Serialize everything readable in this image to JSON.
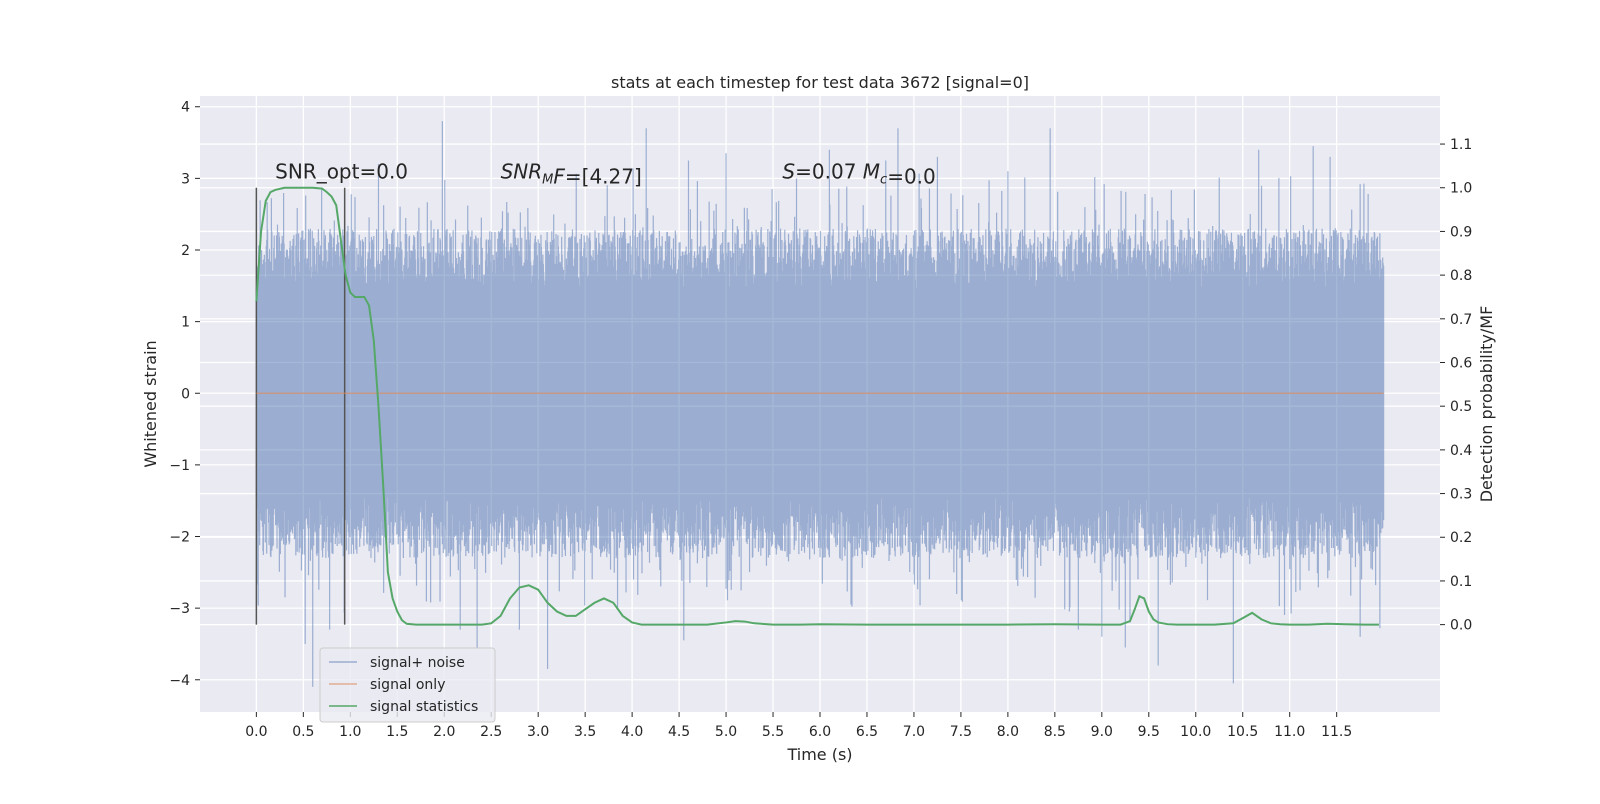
{
  "chart_data": {
    "type": "line",
    "title": "stats at each timestep for test data 3672 [signal=0]",
    "xlabel": "Time (s)",
    "ylabel": "Whitened strain",
    "y2label": "Detection probability/MF",
    "xlim": [
      -0.6,
      12.6
    ],
    "ylim": [
      -4.45,
      4.15
    ],
    "y2lim": [
      -0.2,
      1.21
    ],
    "x_ticks": [
      0.0,
      0.5,
      1.0,
      1.5,
      2.0,
      2.5,
      3.0,
      3.5,
      4.0,
      4.5,
      5.0,
      5.5,
      6.0,
      6.5,
      7.0,
      7.5,
      8.0,
      8.5,
      9.0,
      9.5,
      10.0,
      10.5,
      11.0,
      11.5
    ],
    "x_tick_labels": [
      "0.0",
      "0.5",
      "1.0",
      "1.5",
      "2.0",
      "2.5",
      "3.0",
      "3.5",
      "4.0",
      "4.5",
      "5.0",
      "5.5",
      "6.0",
      "6.5",
      "7.0",
      "7.5",
      "8.0",
      "8.5",
      "9.0",
      "9.5",
      "10.0",
      "10.5",
      "11.0",
      "11.5"
    ],
    "y_ticks": [
      -4,
      -3,
      -2,
      -1,
      0,
      1,
      2,
      3,
      4
    ],
    "y_tick_labels": [
      "−4",
      "−3",
      "−2",
      "−1",
      "0",
      "1",
      "2",
      "3",
      "4"
    ],
    "y2_ticks": [
      0.0,
      0.1,
      0.2,
      0.3,
      0.4,
      0.5,
      0.6,
      0.7,
      0.8,
      0.9,
      1.0,
      1.1
    ],
    "y2_tick_labels": [
      "0.0",
      "0.1",
      "0.2",
      "0.3",
      "0.4",
      "0.5",
      "0.6",
      "0.7",
      "0.8",
      "0.9",
      "1.0",
      "1.1"
    ],
    "grid": true,
    "legend_position": "lower-left",
    "noise": {
      "duration": 12.0,
      "core_envelope": 1.45,
      "peak_envelope": 2.3,
      "extremes": [
        [
          0.52,
          -3.5
        ],
        [
          0.6,
          -4.1
        ],
        [
          0.78,
          -3.3
        ],
        [
          1.98,
          3.8
        ],
        [
          2.17,
          -3.3
        ],
        [
          2.35,
          -3.55
        ],
        [
          2.8,
          -3.3
        ],
        [
          3.1,
          -3.85
        ],
        [
          4.15,
          3.7
        ],
        [
          4.55,
          -3.45
        ],
        [
          4.6,
          3.25
        ],
        [
          5.0,
          3.35
        ],
        [
          6.1,
          3.4
        ],
        [
          6.7,
          3.25
        ],
        [
          6.83,
          3.7
        ],
        [
          7.25,
          3.3
        ],
        [
          8.45,
          3.7
        ],
        [
          8.75,
          -3.3
        ],
        [
          9.0,
          -3.4
        ],
        [
          9.25,
          -3.55
        ],
        [
          9.3,
          -3.2
        ],
        [
          9.6,
          -3.8
        ],
        [
          10.4,
          -4.05
        ],
        [
          10.67,
          3.4
        ],
        [
          11.25,
          3.45
        ],
        [
          11.43,
          3.3
        ],
        [
          11.75,
          -3.4
        ],
        [
          11.96,
          -3.28
        ],
        [
          1.3,
          3.2
        ],
        [
          8.0,
          3.1
        ]
      ]
    },
    "series": [
      {
        "name": "signal+ noise",
        "color": "#4c72b0",
        "opacity": 0.5
      },
      {
        "name": "signal only",
        "color": "#dd8452",
        "x": [
          0,
          12
        ],
        "y": [
          0,
          0
        ]
      },
      {
        "name": "signal statistics",
        "color": "#55a868",
        "axis": "right",
        "x": [
          0.0,
          0.05,
          0.1,
          0.15,
          0.2,
          0.3,
          0.4,
          0.5,
          0.6,
          0.7,
          0.75,
          0.8,
          0.85,
          0.9,
          0.95,
          1.0,
          1.05,
          1.1,
          1.15,
          1.2,
          1.25,
          1.3,
          1.35,
          1.4,
          1.45,
          1.5,
          1.55,
          1.6,
          1.7,
          1.8,
          2.0,
          2.2,
          2.4,
          2.5,
          2.6,
          2.7,
          2.8,
          2.9,
          3.0,
          3.1,
          3.2,
          3.3,
          3.4,
          3.5,
          3.6,
          3.7,
          3.8,
          3.9,
          4.0,
          4.1,
          4.2,
          4.4,
          4.6,
          4.8,
          5.0,
          5.1,
          5.2,
          5.3,
          5.5,
          5.8,
          6.0,
          6.5,
          7.0,
          7.5,
          8.0,
          8.5,
          9.0,
          9.2,
          9.3,
          9.35,
          9.4,
          9.45,
          9.5,
          9.55,
          9.6,
          9.7,
          9.8,
          10.0,
          10.2,
          10.4,
          10.5,
          10.6,
          10.7,
          10.8,
          10.9,
          11.0,
          11.2,
          11.4,
          11.6,
          11.8,
          11.95
        ],
        "y": [
          0.74,
          0.9,
          0.97,
          0.99,
          0.995,
          1.0,
          1.0,
          1.0,
          1.0,
          0.998,
          0.99,
          0.98,
          0.96,
          0.88,
          0.8,
          0.76,
          0.75,
          0.75,
          0.75,
          0.73,
          0.65,
          0.5,
          0.32,
          0.12,
          0.06,
          0.03,
          0.01,
          0.002,
          0.0,
          0.0,
          0.0,
          0.0,
          0.0,
          0.003,
          0.02,
          0.06,
          0.085,
          0.09,
          0.08,
          0.05,
          0.03,
          0.02,
          0.02,
          0.035,
          0.05,
          0.06,
          0.05,
          0.02,
          0.005,
          0.0,
          0.0,
          0.0,
          0.0,
          0.0,
          0.005,
          0.008,
          0.007,
          0.003,
          0.0,
          0.0,
          0.001,
          0.0,
          0.0,
          0.0,
          0.0,
          0.001,
          0.0,
          0.0,
          0.008,
          0.035,
          0.065,
          0.06,
          0.03,
          0.012,
          0.005,
          0.001,
          0.0,
          0.0,
          0.0,
          0.003,
          0.015,
          0.027,
          0.012,
          0.003,
          0.001,
          0.0,
          0.0,
          0.002,
          0.001,
          0.0,
          0.0
        ]
      }
    ],
    "vertical_lines": [
      0.0,
      0.94
    ],
    "annotations": [
      {
        "x": 0.2,
        "y": 3.0,
        "text": "SNR_opt=0.0"
      },
      {
        "x": 2.6,
        "y": 3.0,
        "parts": [
          {
            "t": "SNR",
            "i": true
          },
          {
            "t": "M",
            "i": true,
            "sub": true
          },
          {
            "t": "F",
            "i": true
          },
          {
            "t": "=[4.27]",
            "i": false
          }
        ]
      },
      {
        "x": 5.6,
        "y": 3.0,
        "parts": [
          {
            "t": "S",
            "i": true
          },
          {
            "t": "=0.07   ",
            "i": false
          },
          {
            "t": "M",
            "i": true
          },
          {
            "t": "c",
            "i": true,
            "sub": true
          },
          {
            "t": "=0.0",
            "i": false
          }
        ]
      }
    ],
    "legend": [
      "signal+ noise",
      "signal only",
      "signal statistics"
    ]
  }
}
